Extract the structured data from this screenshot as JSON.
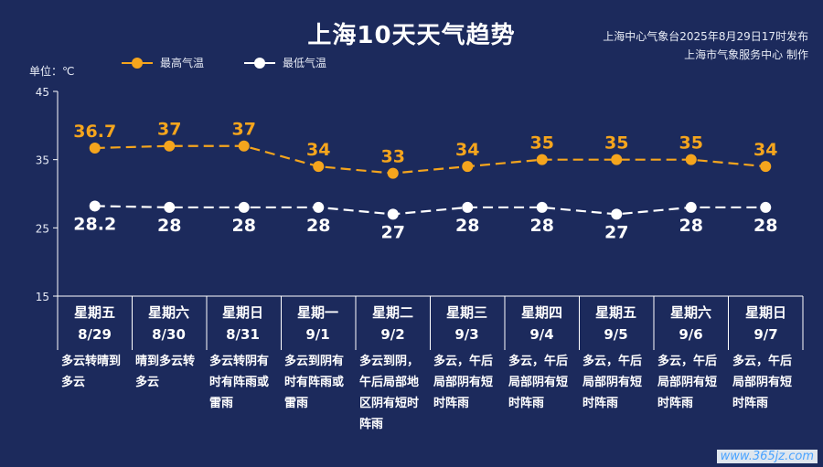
{
  "header": {
    "title": "上海10天天气趋势",
    "source_line1": "上海中心气象台2025年8月29日17时发布",
    "source_line2": "上海市气象服务中心 制作",
    "unit": "单位：℃"
  },
  "colors": {
    "background": "#1c2a5c",
    "high": "#f5a51d",
    "low": "#ffffff",
    "axis": "#ffffff"
  },
  "watermark": "www.365jz.com",
  "days": [
    {
      "weekday": "星期五",
      "date": "8/29",
      "desc": "多云转晴到多云"
    },
    {
      "weekday": "星期六",
      "date": "8/30",
      "desc": "晴到多云转多云"
    },
    {
      "weekday": "星期日",
      "date": "8/31",
      "desc": "多云转阴有时有阵雨或雷雨"
    },
    {
      "weekday": "星期一",
      "date": "9/1",
      "desc": "多云到阴有时有阵雨或雷雨"
    },
    {
      "weekday": "星期二",
      "date": "9/2",
      "desc": "多云到阴，午后局部地区阴有短时阵雨"
    },
    {
      "weekday": "星期三",
      "date": "9/3",
      "desc": "多云，午后局部阴有短时阵雨"
    },
    {
      "weekday": "星期四",
      "date": "9/4",
      "desc": "多云，午后局部阴有短时阵雨"
    },
    {
      "weekday": "星期五",
      "date": "9/5",
      "desc": "多云，午后局部阴有短时阵雨"
    },
    {
      "weekday": "星期六",
      "date": "9/6",
      "desc": "多云，午后局部阴有短时阵雨"
    },
    {
      "weekday": "星期日",
      "date": "9/7",
      "desc": "多云，午后局部阴有短时阵雨"
    }
  ],
  "chart_data": {
    "type": "line",
    "title": "上海10天天气趋势",
    "ylabel": "单位：℃",
    "ylim": [
      15,
      45
    ],
    "yticks": [
      "15",
      "25",
      "35",
      "45"
    ],
    "categories": [
      "8/29",
      "8/30",
      "8/31",
      "9/1",
      "9/2",
      "9/3",
      "9/4",
      "9/5",
      "9/6",
      "9/7"
    ],
    "legend_position": "top-left",
    "grid": false,
    "series": [
      {
        "name": "最高气温",
        "values": [
          36.7,
          37,
          37,
          34,
          33,
          34,
          35,
          35,
          35,
          34
        ],
        "labels": [
          "36.7",
          "37",
          "37",
          "34",
          "33",
          "34",
          "35",
          "35",
          "35",
          "34"
        ]
      },
      {
        "name": "最低气温",
        "values": [
          28.2,
          28,
          28,
          28,
          27,
          28,
          28,
          27,
          28,
          28
        ],
        "labels": [
          "28.2",
          "28",
          "28",
          "28",
          "27",
          "28",
          "28",
          "27",
          "28",
          "28"
        ]
      }
    ]
  }
}
